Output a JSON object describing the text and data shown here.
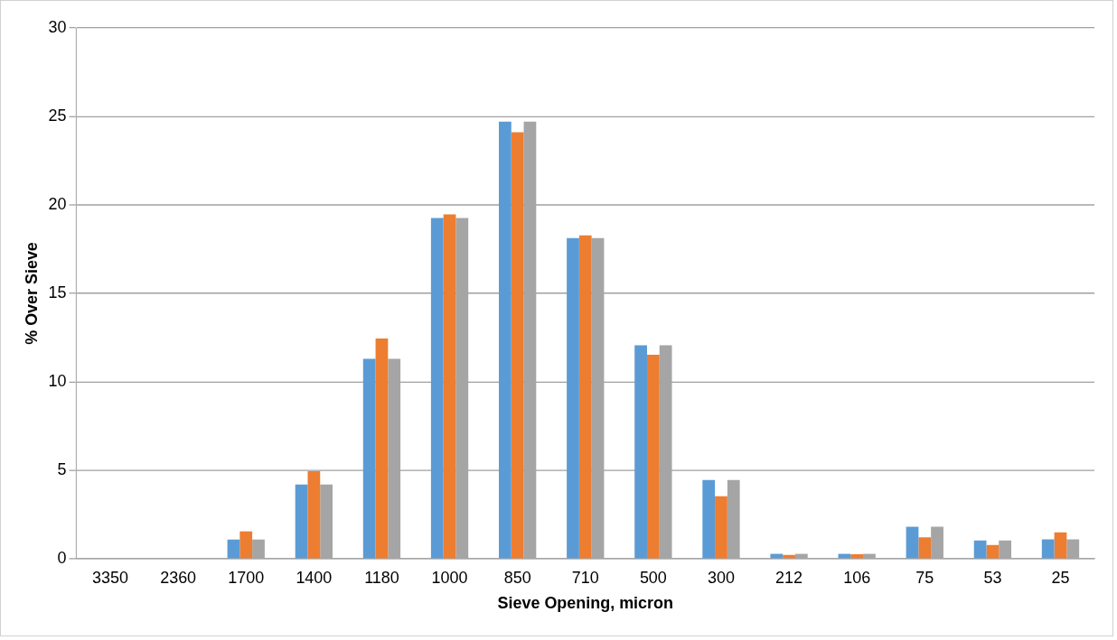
{
  "chart_data": {
    "type": "bar",
    "xlabel": "Sieve Opening, micron",
    "ylabel": "% Over Sieve",
    "categories": [
      "3350",
      "2360",
      "1700",
      "1400",
      "1180",
      "1000",
      "850",
      "710",
      "500",
      "300",
      "212",
      "106",
      "75",
      "53",
      "25"
    ],
    "series": [
      {
        "color": "#5b9bd5",
        "values": [
          0,
          0,
          1.09,
          4.2,
          11.3,
          19.26,
          24.7,
          18.12,
          12.07,
          4.45,
          0.28,
          0.28,
          1.81,
          1.04,
          1.1
        ]
      },
      {
        "color": "#ed7d31",
        "values": [
          0,
          0,
          1.55,
          4.95,
          12.45,
          19.46,
          24.1,
          18.27,
          11.53,
          3.54,
          0.22,
          0.26,
          1.21,
          0.78,
          1.49
        ]
      },
      {
        "color": "#a5a5a5",
        "values": [
          0,
          0,
          1.09,
          4.2,
          11.3,
          19.26,
          24.7,
          18.12,
          12.07,
          4.45,
          0.28,
          0.28,
          1.81,
          1.04,
          1.1
        ]
      }
    ],
    "ylim": [
      0,
      30
    ],
    "yticks": [
      0,
      5,
      10,
      15,
      20,
      25,
      30
    ],
    "grid": "y",
    "legend": false
  }
}
